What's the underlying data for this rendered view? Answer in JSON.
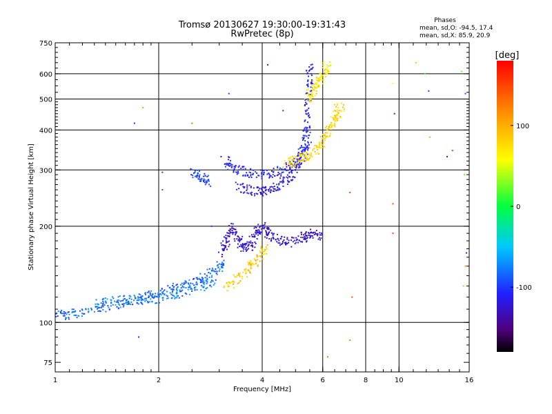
{
  "chart_data": {
    "type": "scatter",
    "title": "Tromsø 20130627 19:30:00-19:31:43",
    "subtitle": "RwPretec (8p)",
    "stats": {
      "header": "Phases",
      "line_o": "mean, sd,O:  -94.5,  17.4",
      "line_x": "mean, sd,X:   85.9,  20.9"
    },
    "xlabel": "Frequency [MHz]",
    "ylabel": "Stationary phase Virtual Height [km]",
    "x_scale": "log",
    "y_scale": "log",
    "xlim": [
      1,
      16
    ],
    "ylim": [
      70,
      750
    ],
    "x_ticks": [
      1,
      2,
      4,
      6,
      8,
      10,
      16
    ],
    "x_tick_labels": [
      "1",
      "2",
      "4",
      "6",
      "8",
      "10",
      "16"
    ],
    "x_grid": [
      2,
      4,
      6,
      8,
      10
    ],
    "y_ticks": [
      75,
      100,
      200,
      300,
      400,
      500,
      600,
      750
    ],
    "y_tick_labels": [
      "75",
      "100",
      "200",
      "300",
      "400",
      "500",
      "600",
      "750"
    ],
    "y_grid": [
      100,
      200,
      300,
      400,
      500,
      600
    ],
    "grid": true,
    "colorbar": {
      "label": "[deg]",
      "range": [
        -180,
        180
      ],
      "ticks": [
        100,
        0,
        -100
      ],
      "tick_labels": [
        "100",
        "0",
        "-100"
      ]
    },
    "traces": [
      {
        "phase": -85,
        "points": [
          [
            1,
            105
          ],
          [
            1.1,
            106
          ],
          [
            1.25,
            109
          ],
          [
            1.4,
            112
          ],
          [
            1.6,
            116
          ],
          [
            1.8,
            119
          ],
          [
            2,
            123
          ],
          [
            2.2,
            127
          ],
          [
            2.45,
            132
          ],
          [
            2.7,
            138
          ],
          [
            2.95,
            146
          ],
          [
            3.1,
            155
          ]
        ]
      },
      {
        "phase": -75,
        "points": [
          [
            1.3,
            114
          ],
          [
            1.5,
            117
          ],
          [
            1.7,
            118
          ],
          [
            1.9,
            118
          ],
          [
            2.1,
            120
          ],
          [
            2.4,
            125
          ],
          [
            2.7,
            130
          ],
          [
            2.9,
            136
          ]
        ]
      },
      {
        "phase": -125,
        "points": [
          [
            3.05,
            165
          ],
          [
            3.15,
            180
          ],
          [
            3.25,
            200
          ],
          [
            3.4,
            185
          ],
          [
            3.55,
            170
          ],
          [
            3.7,
            175
          ],
          [
            3.85,
            190
          ],
          [
            4.0,
            200
          ],
          [
            4.2,
            185
          ],
          [
            4.5,
            180
          ],
          [
            4.9,
            178
          ],
          [
            5.3,
            185
          ],
          [
            5.6,
            190
          ],
          [
            5.9,
            185
          ]
        ]
      },
      {
        "phase": -110,
        "points": [
          [
            3.1,
            325
          ],
          [
            3.3,
            305
          ],
          [
            3.6,
            292
          ],
          [
            4.0,
            290
          ],
          [
            4.4,
            295
          ],
          [
            4.8,
            305
          ],
          [
            5.1,
            320
          ],
          [
            5.3,
            350
          ],
          [
            5.4,
            400
          ],
          [
            5.45,
            480
          ],
          [
            5.5,
            560
          ],
          [
            5.5,
            640
          ]
        ]
      },
      {
        "phase": -115,
        "points": [
          [
            3.4,
            265
          ],
          [
            3.7,
            258
          ],
          [
            4.0,
            258
          ],
          [
            4.3,
            262
          ],
          [
            4.6,
            275
          ],
          [
            4.9,
            290
          ],
          [
            5.2,
            320
          ],
          [
            5.45,
            380
          ]
        ]
      },
      {
        "phase": -100,
        "points": [
          [
            2.5,
            295
          ],
          [
            2.65,
            285
          ],
          [
            2.8,
            275
          ]
        ]
      },
      {
        "phase": 85,
        "points": [
          [
            3.1,
            128
          ],
          [
            3.4,
            138
          ],
          [
            3.7,
            150
          ],
          [
            3.9,
            160
          ],
          [
            4.1,
            170
          ]
        ]
      },
      {
        "phase": 80,
        "points": [
          [
            4.7,
            315
          ],
          [
            5.0,
            320
          ],
          [
            5.3,
            330
          ],
          [
            5.6,
            340
          ],
          [
            5.9,
            360
          ],
          [
            6.2,
            390
          ],
          [
            6.4,
            420
          ],
          [
            6.6,
            450
          ],
          [
            6.8,
            470
          ]
        ]
      },
      {
        "phase": 70,
        "points": [
          [
            5.4,
            500
          ],
          [
            5.6,
            530
          ],
          [
            5.8,
            560
          ],
          [
            6.0,
            600
          ],
          [
            6.2,
            640
          ]
        ]
      }
    ],
    "outliers": [
      {
        "x": 1.7,
        "y": 420,
        "phase": -110
      },
      {
        "x": 1.8,
        "y": 470,
        "phase": 110
      },
      {
        "x": 2.05,
        "y": 260,
        "phase": -90
      },
      {
        "x": 2.5,
        "y": 420,
        "phase": 130
      },
      {
        "x": 2.85,
        "y": 200,
        "phase": -100
      },
      {
        "x": 3.2,
        "y": 520,
        "phase": -95
      },
      {
        "x": 4.15,
        "y": 640,
        "phase": -110
      },
      {
        "x": 4.6,
        "y": 460,
        "phase": -100
      },
      {
        "x": 6.5,
        "y": 480,
        "phase": 80
      },
      {
        "x": 7.2,
        "y": 255,
        "phase": 150
      },
      {
        "x": 7.2,
        "y": 88,
        "phase": 120
      },
      {
        "x": 7.3,
        "y": 120,
        "phase": 140
      },
      {
        "x": 6.2,
        "y": 78,
        "phase": 130
      },
      {
        "x": 9.6,
        "y": 235,
        "phase": 150
      },
      {
        "x": 9.6,
        "y": 190,
        "phase": 150
      },
      {
        "x": 9.7,
        "y": 450,
        "phase": -120
      },
      {
        "x": 9.6,
        "y": 560,
        "phase": 60
      },
      {
        "x": 11.2,
        "y": 650,
        "phase": 90
      },
      {
        "x": 11.9,
        "y": 600,
        "phase": 10
      },
      {
        "x": 12.2,
        "y": 530,
        "phase": -100
      },
      {
        "x": 12.3,
        "y": 380,
        "phase": 20
      },
      {
        "x": 13.8,
        "y": 330,
        "phase": -120
      },
      {
        "x": 14.3,
        "y": 345,
        "phase": 160
      },
      {
        "x": 15.2,
        "y": 610,
        "phase": 20
      },
      {
        "x": 15.6,
        "y": 520,
        "phase": -90
      },
      {
        "x": 15.5,
        "y": 290,
        "phase": 20
      },
      {
        "x": 15.6,
        "y": 150,
        "phase": 110
      },
      {
        "x": 15.4,
        "y": 130,
        "phase": 30
      },
      {
        "x": 15.7,
        "y": 165,
        "phase": -110
      },
      {
        "x": 1.75,
        "y": 90,
        "phase": -110
      },
      {
        "x": 2.05,
        "y": 295,
        "phase": -100
      }
    ]
  }
}
